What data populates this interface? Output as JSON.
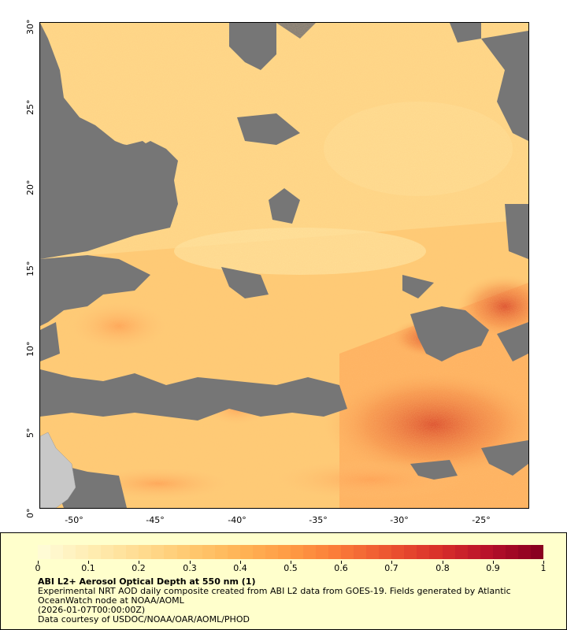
{
  "map": {
    "lat_labels": [
      "30°",
      "25°",
      "20°",
      "15°",
      "10°",
      "5°",
      "0°"
    ],
    "lon_labels": [
      "-50°",
      "-45°",
      "-40°",
      "-35°",
      "-30°",
      "-25°"
    ],
    "land_color": "#c8c8c8",
    "no_data_color": "#767676"
  },
  "legend": {
    "ticks": [
      "0",
      "0.1",
      "0.2",
      "0.3",
      "0.4",
      "0.5",
      "0.6",
      "0.7",
      "0.8",
      "0.9",
      "1"
    ],
    "colors": [
      "#fffbd5",
      "#ffecb0",
      "#ffdb8f",
      "#ffc86e",
      "#ffb355",
      "#ff9b44",
      "#fa7a38",
      "#ec5530",
      "#d9302a",
      "#b8102a",
      "#8a0020"
    ],
    "title": "ABI L2+ Aerosol Optical Depth at 550 nm (1)",
    "description": "Experimental NRT AOD daily composite created from ABI L2 data from GOES-19. Fields generated by Atlantic OceanWatch node at NOAA/AOML",
    "timestamp": "(2026-01-07T00:00:00Z)",
    "credit": "Data courtesy of USDOC/NOAA/OAR/AOML/PHOD"
  }
}
